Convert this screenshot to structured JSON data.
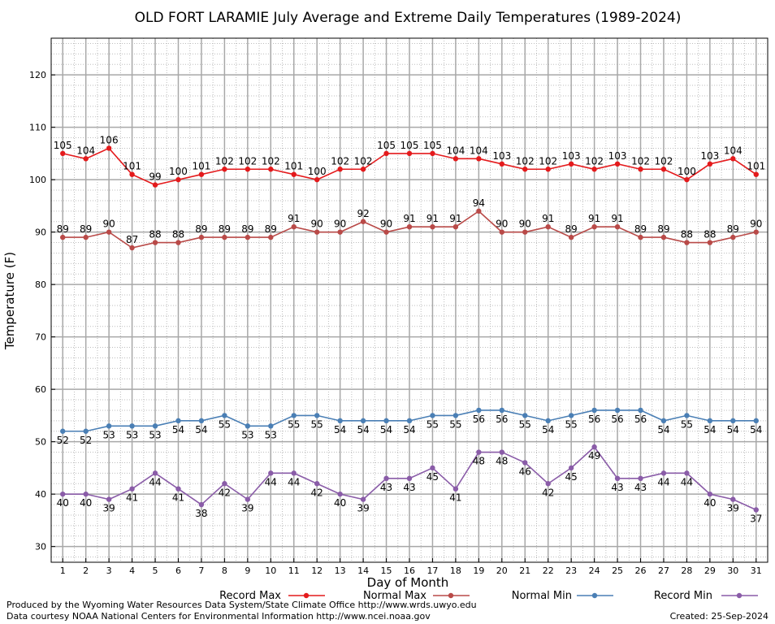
{
  "chart_data": {
    "type": "line",
    "title": "OLD FORT LARAMIE July Average and Extreme Daily Temperatures (1989-2024)",
    "xlabel": "Day of Month",
    "ylabel": "Temperature (F)",
    "x": [
      1,
      2,
      3,
      4,
      5,
      6,
      7,
      8,
      9,
      10,
      11,
      12,
      13,
      14,
      15,
      16,
      17,
      18,
      19,
      20,
      21,
      22,
      23,
      24,
      25,
      26,
      27,
      28,
      29,
      30,
      31
    ],
    "xlim": [
      0.5,
      31.5
    ],
    "ylim": [
      27,
      127
    ],
    "yticks": [
      30,
      40,
      50,
      60,
      70,
      80,
      90,
      100,
      110,
      120
    ],
    "grid": true,
    "legend_position": "bottom",
    "series": [
      {
        "name": "Record Max",
        "color": "#e41a1c",
        "values": [
          105,
          104,
          106,
          101,
          99,
          100,
          101,
          102,
          102,
          102,
          101,
          100,
          102,
          102,
          105,
          105,
          105,
          104,
          104,
          103,
          102,
          102,
          103,
          102,
          103,
          102,
          102,
          100,
          103,
          104,
          101
        ]
      },
      {
        "name": "Normal Max",
        "color": "#b94a48",
        "values": [
          89,
          89,
          90,
          87,
          88,
          88,
          89,
          89,
          89,
          89,
          91,
          90,
          90,
          92,
          90,
          91,
          91,
          91,
          94,
          90,
          90,
          91,
          89,
          91,
          91,
          89,
          89,
          88,
          88,
          89,
          90
        ]
      },
      {
        "name": "Normal Min",
        "color": "#4a7fb5",
        "values": [
          52,
          52,
          53,
          53,
          53,
          54,
          54,
          55,
          53,
          53,
          55,
          55,
          54,
          54,
          54,
          54,
          55,
          55,
          56,
          56,
          55,
          54,
          55,
          56,
          56,
          56,
          54,
          55,
          54,
          54,
          54
        ]
      },
      {
        "name": "Record Min",
        "color": "#8a5ca8",
        "values": [
          40,
          40,
          39,
          41,
          44,
          41,
          38,
          42,
          39,
          44,
          44,
          42,
          40,
          39,
          43,
          43,
          45,
          41,
          48,
          48,
          46,
          42,
          45,
          49,
          43,
          43,
          44,
          44,
          40,
          39,
          37
        ]
      }
    ]
  },
  "footer": {
    "credit_1": "Produced by the Wyoming Water Resources Data System/State Climate Office http://www.wrds.uwyo.edu",
    "credit_2": "Data courtesy NOAA National Centers for Environmental Information http://www.ncei.noaa.gov",
    "created": "Created:  25-Sep-2024"
  }
}
